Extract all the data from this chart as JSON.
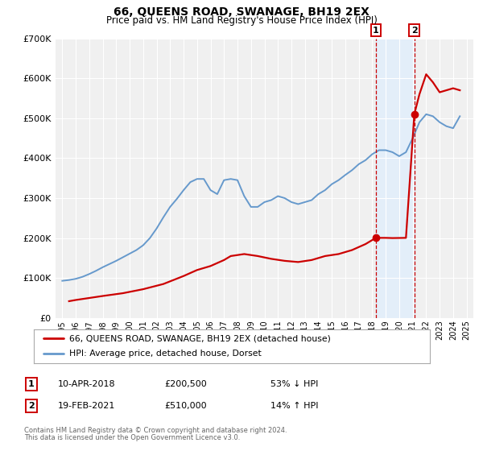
{
  "title": "66, QUEENS ROAD, SWANAGE, BH19 2EX",
  "subtitle": "Price paid vs. HM Land Registry's House Price Index (HPI)",
  "red_label": "66, QUEENS ROAD, SWANAGE, BH19 2EX (detached house)",
  "blue_label": "HPI: Average price, detached house, Dorset",
  "footnote1": "Contains HM Land Registry data © Crown copyright and database right 2024.",
  "footnote2": "This data is licensed under the Open Government Licence v3.0.",
  "event1_label": "1",
  "event1_date": "10-APR-2018",
  "event1_price": "£200,500",
  "event1_hpi": "53% ↓ HPI",
  "event2_label": "2",
  "event2_date": "19-FEB-2021",
  "event2_price": "£510,000",
  "event2_hpi": "14% ↑ HPI",
  "event1_x": 2018.27,
  "event2_x": 2021.12,
  "event1_y": 200500,
  "event2_y": 510000,
  "red_color": "#cc0000",
  "blue_color": "#6699cc",
  "dashed_line_color": "#cc0000",
  "shaded_color": "#ddeeff",
  "background_color": "#f0f0f0",
  "grid_color": "#ffffff",
  "ylim": [
    0,
    700000
  ],
  "xlim_start": 1994.5,
  "xlim_end": 2025.5,
  "yticks": [
    0,
    100000,
    200000,
    300000,
    400000,
    500000,
    600000,
    700000
  ],
  "xticks": [
    1995,
    1996,
    1997,
    1998,
    1999,
    2000,
    2001,
    2002,
    2003,
    2004,
    2005,
    2006,
    2007,
    2008,
    2009,
    2010,
    2011,
    2012,
    2013,
    2014,
    2015,
    2016,
    2017,
    2018,
    2019,
    2020,
    2021,
    2022,
    2023,
    2024,
    2025
  ],
  "hpi_x": [
    1995.0,
    1995.5,
    1996.0,
    1996.5,
    1997.0,
    1997.5,
    1998.0,
    1998.5,
    1999.0,
    1999.5,
    2000.0,
    2000.5,
    2001.0,
    2001.5,
    2002.0,
    2002.5,
    2003.0,
    2003.5,
    2004.0,
    2004.5,
    2005.0,
    2005.5,
    2006.0,
    2006.5,
    2007.0,
    2007.5,
    2008.0,
    2008.5,
    2009.0,
    2009.5,
    2010.0,
    2010.5,
    2011.0,
    2011.5,
    2012.0,
    2012.5,
    2013.0,
    2013.5,
    2014.0,
    2014.5,
    2015.0,
    2015.5,
    2016.0,
    2016.5,
    2017.0,
    2017.5,
    2018.0,
    2018.5,
    2019.0,
    2019.5,
    2020.0,
    2020.5,
    2021.0,
    2021.5,
    2022.0,
    2022.5,
    2023.0,
    2023.5,
    2024.0,
    2024.5
  ],
  "hpi_y": [
    93000,
    95000,
    98000,
    103000,
    110000,
    118000,
    127000,
    135000,
    143000,
    152000,
    161000,
    170000,
    182000,
    200000,
    224000,
    252000,
    278000,
    298000,
    320000,
    340000,
    348000,
    348000,
    320000,
    310000,
    345000,
    348000,
    345000,
    305000,
    278000,
    278000,
    290000,
    295000,
    305000,
    300000,
    290000,
    285000,
    290000,
    295000,
    310000,
    320000,
    335000,
    345000,
    358000,
    370000,
    385000,
    395000,
    410000,
    420000,
    420000,
    415000,
    405000,
    415000,
    450000,
    490000,
    510000,
    505000,
    490000,
    480000,
    475000,
    505000
  ],
  "red_x": [
    1995.5,
    1996.0,
    1998.0,
    1999.5,
    2001.0,
    2002.5,
    2004.0,
    2005.0,
    2006.0,
    2007.0,
    2007.5,
    2008.5,
    2009.5,
    2010.5,
    2011.5,
    2012.5,
    2013.5,
    2014.5,
    2015.5,
    2016.5,
    2017.5,
    2018.27,
    2018.5,
    2019.0,
    2019.5,
    2020.5,
    2021.12,
    2021.5,
    2022.0,
    2022.5,
    2023.0,
    2023.5,
    2024.0,
    2024.5
  ],
  "red_y": [
    42000,
    45000,
    55000,
    62000,
    72000,
    85000,
    105000,
    120000,
    130000,
    145000,
    155000,
    160000,
    155000,
    148000,
    143000,
    140000,
    145000,
    155000,
    160000,
    170000,
    185000,
    200500,
    200500,
    200500,
    200000,
    200500,
    510000,
    560000,
    610000,
    590000,
    565000,
    570000,
    575000,
    570000
  ]
}
